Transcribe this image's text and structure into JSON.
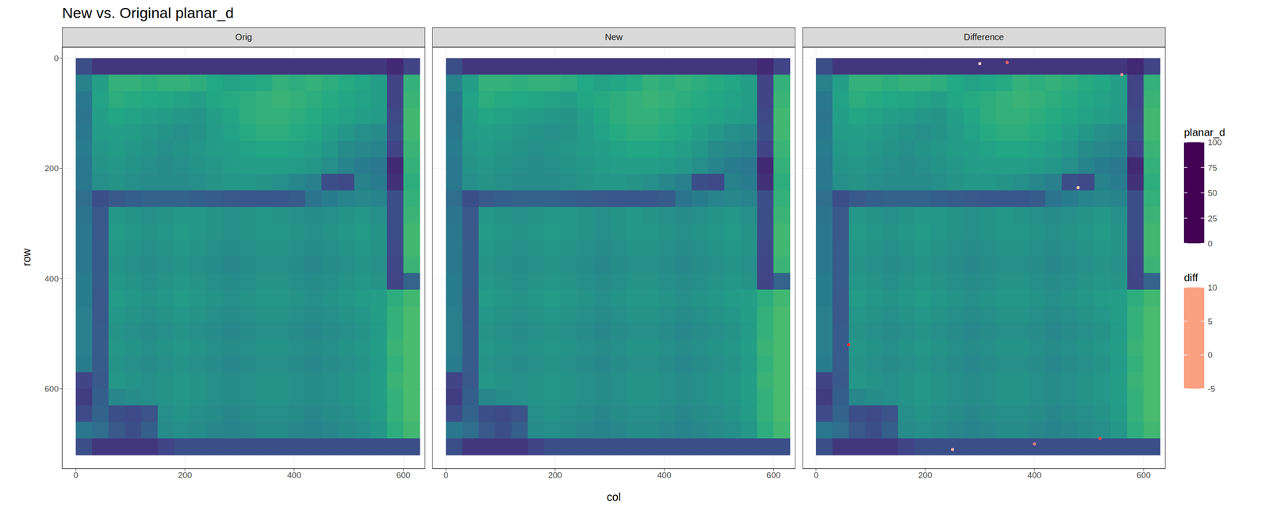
{
  "chart_data": {
    "type": "heatmap",
    "title": "New vs. Original planar_d",
    "x_label": "col",
    "y_label": "row",
    "panels": [
      "Orig",
      "New",
      "Difference"
    ],
    "xlim": [
      -25,
      640
    ],
    "xticks": [
      0,
      200,
      400,
      600
    ],
    "ylim": [
      -20,
      745
    ],
    "yticks": [
      0,
      200,
      400,
      600
    ],
    "grid": true,
    "cols": [
      15,
      45,
      75,
      105,
      135,
      165,
      195,
      225,
      255,
      285,
      315,
      345,
      375,
      405,
      435,
      465,
      495,
      525,
      555,
      585,
      615
    ],
    "rows": [
      15,
      45,
      75,
      105,
      135,
      165,
      195,
      225,
      255,
      285,
      315,
      345,
      375,
      405,
      435,
      465,
      495,
      525,
      555,
      585,
      615,
      645,
      675,
      705
    ],
    "cells": [
      [
        30,
        20,
        20,
        20,
        20,
        20,
        20,
        20,
        20,
        20,
        20,
        20,
        20,
        20,
        20,
        20,
        20,
        20,
        20,
        15,
        25
      ],
      [
        55,
        70,
        80,
        80,
        78,
        80,
        80,
        78,
        75,
        72,
        74,
        76,
        80,
        78,
        80,
        78,
        76,
        74,
        70,
        25,
        80
      ],
      [
        50,
        72,
        78,
        76,
        75,
        74,
        72,
        70,
        74,
        76,
        78,
        80,
        82,
        80,
        78,
        76,
        74,
        72,
        70,
        25,
        82
      ],
      [
        48,
        70,
        74,
        72,
        70,
        68,
        66,
        65,
        70,
        74,
        78,
        80,
        80,
        78,
        76,
        74,
        72,
        70,
        68,
        28,
        84
      ],
      [
        50,
        68,
        70,
        68,
        66,
        64,
        62,
        64,
        68,
        72,
        76,
        78,
        78,
        76,
        74,
        70,
        66,
        62,
        60,
        30,
        84
      ],
      [
        52,
        66,
        68,
        66,
        64,
        62,
        64,
        66,
        68,
        70,
        72,
        74,
        74,
        72,
        70,
        66,
        60,
        58,
        56,
        25,
        82
      ],
      [
        50,
        64,
        66,
        64,
        62,
        60,
        62,
        64,
        66,
        68,
        70,
        70,
        70,
        68,
        66,
        62,
        56,
        52,
        50,
        15,
        80
      ],
      [
        50,
        62,
        64,
        62,
        60,
        60,
        60,
        62,
        64,
        66,
        66,
        64,
        62,
        58,
        54,
        30,
        28,
        55,
        52,
        18,
        78
      ],
      [
        45,
        30,
        35,
        38,
        40,
        40,
        40,
        38,
        36,
        35,
        34,
        34,
        34,
        36,
        48,
        52,
        56,
        58,
        56,
        30,
        80
      ],
      [
        48,
        35,
        66,
        64,
        62,
        64,
        66,
        66,
        64,
        62,
        64,
        66,
        64,
        62,
        60,
        62,
        64,
        66,
        62,
        30,
        82
      ],
      [
        50,
        35,
        68,
        66,
        64,
        66,
        68,
        66,
        64,
        62,
        64,
        66,
        66,
        64,
        62,
        64,
        66,
        68,
        64,
        30,
        84
      ],
      [
        50,
        36,
        66,
        64,
        62,
        64,
        66,
        64,
        62,
        60,
        62,
        64,
        64,
        62,
        60,
        62,
        64,
        66,
        64,
        28,
        84
      ],
      [
        50,
        36,
        64,
        62,
        60,
        62,
        64,
        62,
        60,
        58,
        60,
        62,
        62,
        60,
        58,
        60,
        62,
        64,
        62,
        26,
        82
      ],
      [
        52,
        36,
        66,
        64,
        62,
        64,
        66,
        64,
        62,
        60,
        62,
        64,
        64,
        62,
        60,
        62,
        64,
        66,
        64,
        25,
        40
      ],
      [
        52,
        35,
        68,
        66,
        64,
        66,
        68,
        66,
        64,
        62,
        64,
        66,
        66,
        64,
        62,
        64,
        66,
        68,
        70,
        78,
        84
      ],
      [
        54,
        35,
        66,
        64,
        62,
        64,
        66,
        64,
        62,
        60,
        62,
        64,
        64,
        62,
        60,
        62,
        64,
        66,
        70,
        80,
        86
      ],
      [
        54,
        36,
        64,
        62,
        60,
        62,
        64,
        62,
        60,
        58,
        60,
        62,
        62,
        60,
        58,
        60,
        62,
        64,
        68,
        80,
        86
      ],
      [
        54,
        36,
        66,
        64,
        62,
        64,
        66,
        64,
        62,
        60,
        62,
        64,
        64,
        62,
        60,
        62,
        64,
        66,
        70,
        82,
        86
      ],
      [
        52,
        36,
        64,
        62,
        60,
        62,
        64,
        62,
        60,
        58,
        60,
        62,
        62,
        60,
        58,
        60,
        62,
        64,
        68,
        80,
        86
      ],
      [
        25,
        35,
        66,
        64,
        62,
        64,
        66,
        64,
        62,
        60,
        62,
        64,
        64,
        62,
        60,
        62,
        64,
        66,
        70,
        82,
        86
      ],
      [
        22,
        38,
        58,
        60,
        62,
        64,
        66,
        64,
        62,
        60,
        62,
        64,
        64,
        62,
        60,
        62,
        64,
        66,
        70,
        80,
        86
      ],
      [
        28,
        40,
        30,
        28,
        32,
        62,
        64,
        62,
        60,
        58,
        60,
        62,
        62,
        60,
        58,
        60,
        62,
        64,
        68,
        80,
        86
      ],
      [
        50,
        45,
        35,
        30,
        38,
        60,
        62,
        60,
        58,
        56,
        58,
        60,
        60,
        58,
        56,
        58,
        60,
        62,
        66,
        78,
        84
      ],
      [
        30,
        20,
        20,
        20,
        20,
        25,
        30,
        30,
        30,
        30,
        30,
        30,
        30,
        30,
        30,
        30,
        30,
        30,
        30,
        30,
        30
      ]
    ],
    "colorbar": {
      "title": "planar_d",
      "range": [
        0,
        100
      ],
      "ticks": [
        0,
        25,
        50,
        75,
        100
      ]
    },
    "diff_points": {
      "title": "diff",
      "panel": "Difference",
      "col": [
        350,
        480,
        560,
        60,
        400,
        250,
        520,
        300
      ],
      "row": [
        8,
        235,
        30,
        520,
        700,
        710,
        690,
        10
      ],
      "values": [
        6,
        -3,
        4,
        8,
        5,
        3,
        7,
        2
      ],
      "range": [
        -5,
        10
      ],
      "ticks": [
        -5,
        0,
        5,
        10
      ]
    }
  }
}
